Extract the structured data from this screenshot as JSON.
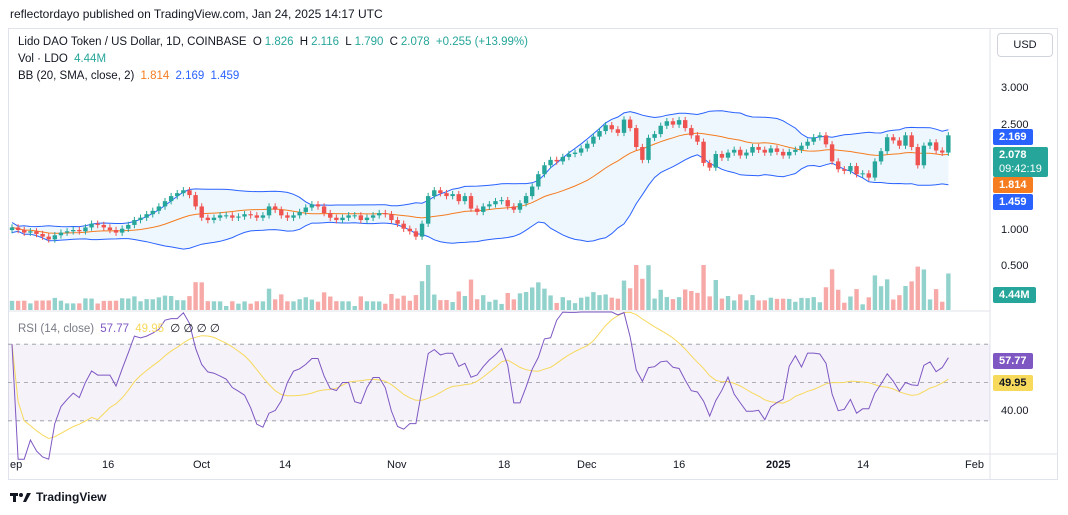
{
  "header": {
    "published": "reflectordayo published on TradingView.com, Jan 24, 2025 14:17 UTC"
  },
  "legend": {
    "symbol": "Lido DAO Token / US Dollar, 1D, COINBASE",
    "o_label": "O",
    "o": "1.826",
    "h_label": "H",
    "h": "2.116",
    "l_label": "L",
    "l": "1.790",
    "c_label": "C",
    "c": "2.078",
    "change": "+0.255 (+13.99%)",
    "vol_label": "Vol · LDO",
    "vol": "4.44M",
    "bb_label": "BB (20, SMA, close, 2)",
    "bb_basis": "1.814",
    "bb_upper": "2.169",
    "bb_lower": "1.459",
    "rsi_label": "RSI (14, close)",
    "rsi": "57.77",
    "rsi_ma": "49.95",
    "rsi_extra": "∅ ∅ ∅ ∅"
  },
  "currency_button": "USD",
  "price_axis": [
    "3.000",
    "2.500",
    "1.000",
    "0.500"
  ],
  "rsi_axis": [
    "40.00"
  ],
  "tags": {
    "bb_upper": "2.169",
    "price": "2.078",
    "countdown": "09:42:19",
    "bb_basis": "1.814",
    "bb_lower": "1.459",
    "volume": "4.44M",
    "rsi": "57.77",
    "rsi_ma": "49.95"
  },
  "time_axis": [
    "ep",
    "16",
    "Oct",
    "14",
    "Nov",
    "18",
    "Dec",
    "16",
    "2025",
    "14",
    "Feb"
  ],
  "branding": "TradingView",
  "colors": {
    "up": "#26a69a",
    "down": "#ef5350",
    "bb_basis": "#f57c1f",
    "bb_band": "#2962ff",
    "rsi": "#7e57c2",
    "rsi_ma": "#f7d95c"
  },
  "chart_data": {
    "type": "candlestick",
    "symbol": "LDO/USD",
    "interval": "1D",
    "ylim": [
      0.0,
      3.3
    ],
    "closes": [
      1.02,
      1.0,
      0.98,
      0.99,
      0.97,
      0.95,
      0.93,
      0.96,
      0.98,
      0.99,
      1.0,
      0.99,
      1.02,
      1.05,
      1.04,
      1.02,
      1.0,
      0.98,
      1.01,
      1.04,
      1.08,
      1.1,
      1.13,
      1.16,
      1.2,
      1.25,
      1.3,
      1.33,
      1.36,
      1.31,
      1.2,
      1.1,
      1.08,
      1.1,
      1.12,
      1.12,
      1.1,
      1.11,
      1.13,
      1.12,
      1.1,
      1.12,
      1.2,
      1.17,
      1.12,
      1.1,
      1.12,
      1.15,
      1.19,
      1.22,
      1.2,
      1.14,
      1.1,
      1.08,
      1.1,
      1.12,
      1.12,
      1.08,
      1.1,
      1.12,
      1.14,
      1.13,
      1.08,
      1.05,
      1.01,
      0.99,
      0.95,
      1.05,
      1.3,
      1.36,
      1.33,
      1.3,
      1.32,
      1.25,
      1.3,
      1.18,
      1.15,
      1.2,
      1.22,
      1.25,
      1.26,
      1.2,
      1.17,
      1.23,
      1.3,
      1.4,
      1.54,
      1.65,
      1.72,
      1.7,
      1.76,
      1.8,
      1.82,
      1.88,
      1.95,
      2.06,
      2.15,
      2.25,
      2.18,
      2.12,
      2.35,
      2.2,
      1.9,
      1.72,
      2.04,
      2.1,
      2.24,
      2.32,
      2.26,
      2.34,
      2.2,
      2.08,
      1.98,
      1.68,
      1.62,
      1.8,
      1.75,
      1.82,
      1.86,
      1.78,
      1.82,
      1.9,
      1.86,
      1.82,
      1.88,
      1.83,
      1.78,
      1.83,
      1.86,
      1.92,
      1.98,
      2.05,
      2.08,
      1.94,
      1.7,
      1.6,
      1.58,
      1.64,
      1.54,
      1.55,
      1.5,
      1.7,
      1.84,
      2.05,
      2.0,
      1.92,
      2.08,
      1.9,
      1.65,
      1.92,
      1.97,
      1.85,
      1.82,
      2.08
    ],
    "volume_peak": "4.44M",
    "rsi_levels": [
      70,
      50,
      30
    ]
  }
}
